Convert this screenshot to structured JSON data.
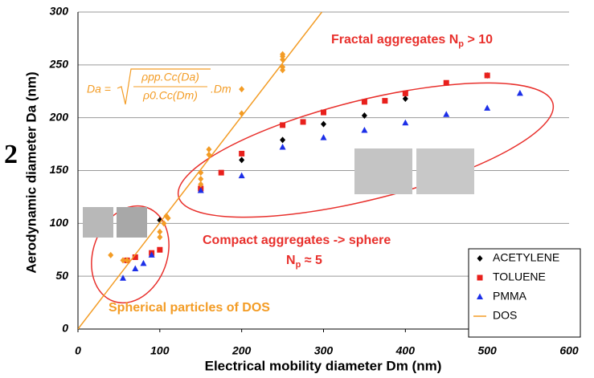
{
  "chart_data": {
    "type": "scatter",
    "xlabel": "Electrical mobility diameter Dm (nm)",
    "ylabel": "Aerodynamic diameter Da (nm)",
    "xlim": [
      0,
      600
    ],
    "ylim": [
      0,
      300
    ],
    "xticks": [
      0,
      100,
      200,
      300,
      400,
      500,
      600
    ],
    "yticks": [
      0,
      50,
      100,
      150,
      200,
      250,
      300
    ],
    "grid": true,
    "legend": "lower right",
    "side_label": "2",
    "series": [
      {
        "name": "ACETYLENE",
        "color": "#000000",
        "marker": "diamond",
        "x": [
          100,
          150,
          200,
          250,
          300,
          350,
          400,
          500
        ],
        "values": [
          103,
          133,
          160,
          179,
          194,
          202,
          218,
          240
        ]
      },
      {
        "name": "TOLUENE",
        "color": "#e8201c",
        "marker": "square",
        "x": [
          60,
          70,
          90,
          100,
          150,
          175,
          200,
          250,
          275,
          300,
          350,
          375,
          400,
          450,
          500
        ],
        "values": [
          65,
          68,
          72,
          75,
          133,
          148,
          166,
          193,
          196,
          205,
          215,
          216,
          223,
          233,
          240
        ]
      },
      {
        "name": "PMMA",
        "color": "#1c2fe8",
        "marker": "triangle",
        "x": [
          55,
          70,
          80,
          90,
          150,
          200,
          250,
          300,
          350,
          400,
          450,
          500,
          540
        ],
        "values": [
          48,
          57,
          62,
          70,
          131,
          145,
          172,
          181,
          188,
          195,
          203,
          209,
          223
        ]
      },
      {
        "name": "DOS",
        "color": "#f39c25",
        "marker": "diamond",
        "x": [
          40,
          55,
          60,
          100,
          100,
          105,
          108,
          110,
          150,
          150,
          150,
          160,
          160,
          200,
          200,
          250,
          250,
          250,
          250,
          250
        ],
        "values": [
          70,
          65,
          65,
          87,
          92,
          100,
          107,
          105,
          137,
          142,
          148,
          165,
          170,
          204,
          227,
          245,
          248,
          255,
          258,
          260
        ],
        "line": {
          "x": [
            0,
            298
          ],
          "values": [
            0,
            300
          ]
        }
      }
    ],
    "annotations": {
      "fractal": {
        "text": "Fractal aggregates N",
        "sub": "p",
        "tail": " > 10"
      },
      "compact": "Compact aggregates -> sphere",
      "compact_np": {
        "text": "N",
        "sub": "p",
        "tail": " ≈ 5"
      },
      "spherical": "Spherical particles of DOS",
      "formula": {
        "lhs": "Da =",
        "numerator": "ρpp.Cc(Da)",
        "denominator": "ρ0.Cc(Dm)",
        "tail": ".Dm"
      }
    }
  }
}
